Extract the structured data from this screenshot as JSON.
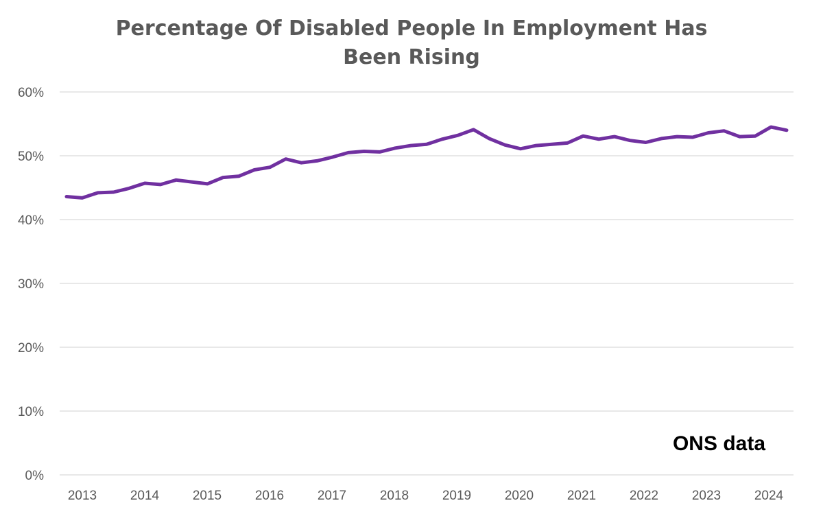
{
  "chart_data": {
    "type": "line",
    "title": [
      "Percentage Of Disabled People In Employment Has",
      "Been Rising"
    ],
    "xlabel": "",
    "ylabel": "",
    "ylim": [
      0,
      60
    ],
    "y_ticks": [
      {
        "value": 0,
        "label": "0%"
      },
      {
        "value": 10,
        "label": "10%"
      },
      {
        "value": 20,
        "label": "20%"
      },
      {
        "value": 30,
        "label": "30%"
      },
      {
        "value": 40,
        "label": "40%"
      },
      {
        "value": 50,
        "label": "50%"
      },
      {
        "value": 60,
        "label": "60%"
      }
    ],
    "x_ticks": [
      "2013",
      "2014",
      "2015",
      "2016",
      "2017",
      "2018",
      "2019",
      "2020",
      "2021",
      "2022",
      "2023",
      "2024"
    ],
    "grid": true,
    "annotation": "ONS data",
    "series": [
      {
        "name": "Disabled people in employment",
        "color": "#7030a0",
        "values": [
          43.6,
          43.4,
          44.2,
          44.3,
          44.9,
          45.7,
          45.5,
          46.2,
          45.9,
          45.6,
          46.6,
          46.8,
          47.8,
          48.2,
          49.5,
          48.9,
          49.2,
          49.8,
          50.5,
          50.7,
          50.6,
          51.2,
          51.6,
          51.8,
          52.6,
          53.2,
          54.1,
          52.7,
          51.7,
          51.1,
          51.6,
          51.8,
          52.0,
          53.1,
          52.6,
          53.0,
          52.4,
          52.1,
          52.7,
          53.0,
          52.9,
          53.6,
          53.9,
          53.0,
          53.1,
          54.5,
          54.0
        ]
      }
    ]
  }
}
